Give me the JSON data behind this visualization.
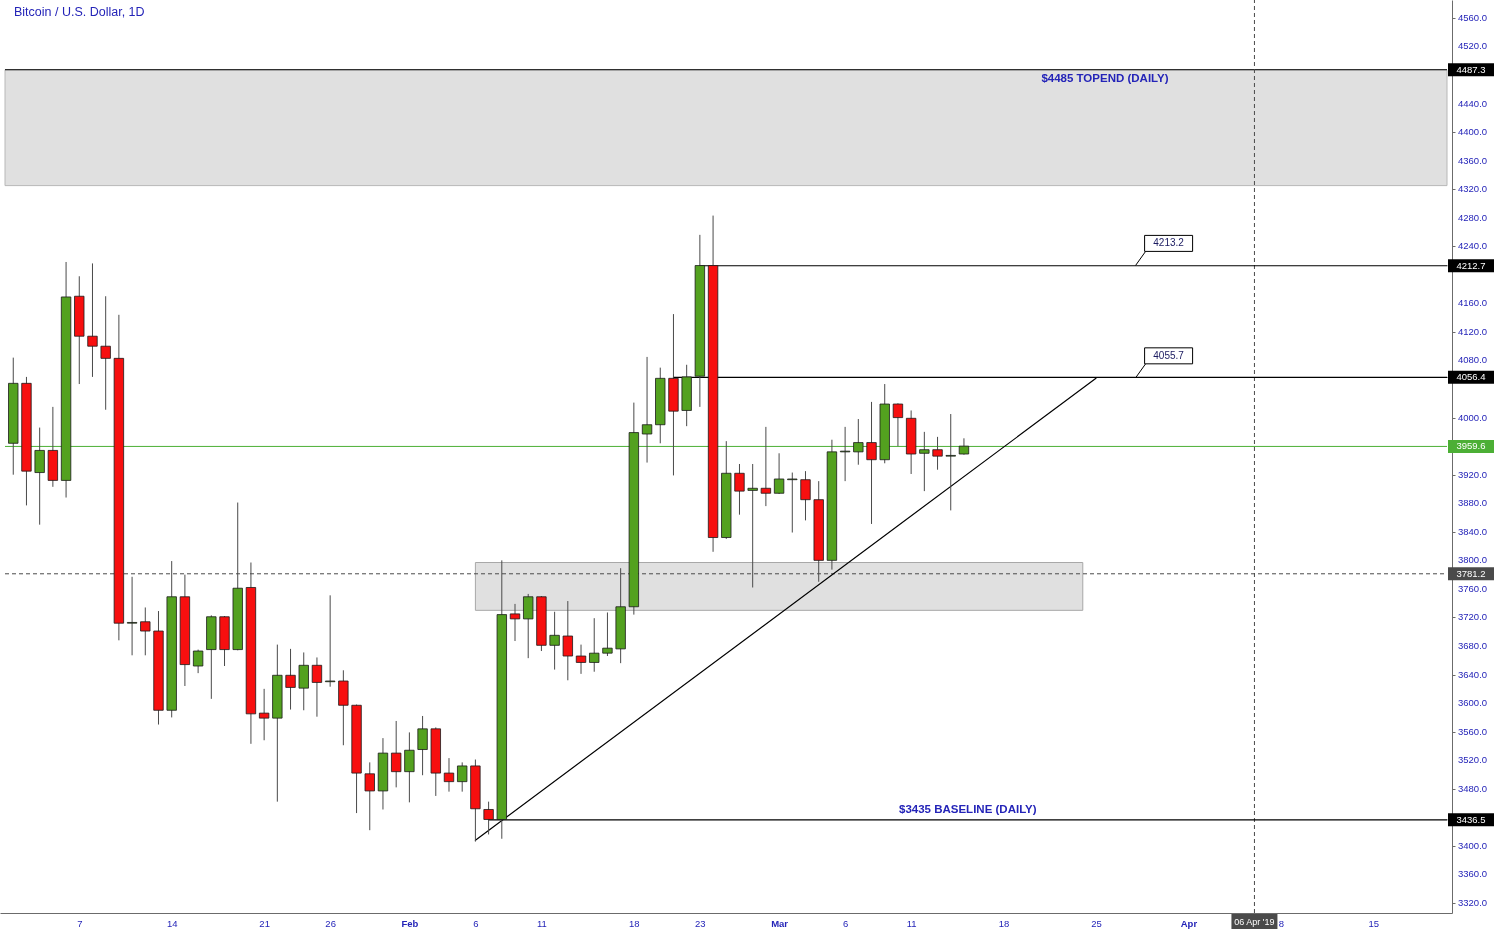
{
  "chart_data": {
    "type": "candlestick",
    "title": "Bitcoin / U.S. Dollar, 1D",
    "xlim": [
      "2019-01-01T09:00",
      "2019-04-20T14:00"
    ],
    "xticks": [
      {
        "value": "2019-01-07",
        "label": "7"
      },
      {
        "value": "2019-01-14",
        "label": "14"
      },
      {
        "value": "2019-01-21",
        "label": "21"
      },
      {
        "value": "2019-01-26",
        "label": "26"
      },
      {
        "value": "2019-02-01",
        "label": "Feb"
      },
      {
        "value": "2019-02-06",
        "label": "6"
      },
      {
        "value": "2019-02-11",
        "label": "11"
      },
      {
        "value": "2019-02-18",
        "label": "18"
      },
      {
        "value": "2019-02-23",
        "label": "23"
      },
      {
        "value": "2019-03-01",
        "label": "Mar"
      },
      {
        "value": "2019-03-06",
        "label": "6"
      },
      {
        "value": "2019-03-11",
        "label": "11"
      },
      {
        "value": "2019-03-18",
        "label": "18"
      },
      {
        "value": "2019-03-25",
        "label": "25"
      },
      {
        "value": "2019-04-01",
        "label": "Apr"
      },
      {
        "value": "2019-04-08",
        "label": "8"
      },
      {
        "value": "2019-04-15",
        "label": "15"
      }
    ],
    "ylim": [
      3306,
      4585
    ],
    "yticks": [
      {
        "value": 3320,
        "label": "3320.0"
      },
      {
        "value": 3360,
        "label": "3360.0"
      },
      {
        "value": 3400,
        "label": "3400.0"
      },
      {
        "value": 3440,
        "label": null
      },
      {
        "value": 3480,
        "label": "3480.0"
      },
      {
        "value": 3520,
        "label": "3520.0"
      },
      {
        "value": 3560,
        "label": "3560.0"
      },
      {
        "value": 3600,
        "label": "3600.0"
      },
      {
        "value": 3640,
        "label": "3640.0"
      },
      {
        "value": 3680,
        "label": "3680.0"
      },
      {
        "value": 3720,
        "label": "3720.0"
      },
      {
        "value": 3760,
        "label": "3760.0"
      },
      {
        "value": 3780,
        "label": null
      },
      {
        "value": 3800,
        "label": "3800.0"
      },
      {
        "value": 3840,
        "label": "3840.0"
      },
      {
        "value": 3880,
        "label": "3880.0"
      },
      {
        "value": 3920,
        "label": "3920.0"
      },
      {
        "value": 3960,
        "label": null
      },
      {
        "value": 4000,
        "label": "4000.0"
      },
      {
        "value": 4080,
        "label": "4080.0"
      },
      {
        "value": 4120,
        "label": "4120.0"
      },
      {
        "value": 4160,
        "label": "4160.0"
      },
      {
        "value": 4240,
        "label": "4240.0"
      },
      {
        "value": 4280,
        "label": "4280.0"
      },
      {
        "value": 4320,
        "label": "4320.0"
      },
      {
        "value": 4360,
        "label": "4360.0"
      },
      {
        "value": 4400,
        "label": "4400.0"
      },
      {
        "value": 4440,
        "label": "4440.0"
      },
      {
        "value": 4480,
        "label": null
      },
      {
        "value": 4520,
        "label": "4520.0"
      },
      {
        "value": 4560,
        "label": "4560.0"
      }
    ],
    "series": [
      {
        "x": [
          "2019-01-02",
          "2019-01-03",
          "2019-01-04",
          "2019-01-05",
          "2019-01-06",
          "2019-01-07",
          "2019-01-08",
          "2019-01-09",
          "2019-01-10",
          "2019-01-11",
          "2019-01-12",
          "2019-01-13",
          "2019-01-14",
          "2019-01-15",
          "2019-01-16",
          "2019-01-17",
          "2019-01-18",
          "2019-01-19",
          "2019-01-20",
          "2019-01-21",
          "2019-01-22",
          "2019-01-23",
          "2019-01-24",
          "2019-01-25",
          "2019-01-26",
          "2019-01-27",
          "2019-01-28",
          "2019-01-29",
          "2019-01-30",
          "2019-01-31",
          "2019-02-01",
          "2019-02-02",
          "2019-02-03",
          "2019-02-04",
          "2019-02-05",
          "2019-02-06",
          "2019-02-07",
          "2019-02-08",
          "2019-02-09",
          "2019-02-10",
          "2019-02-11",
          "2019-02-12",
          "2019-02-13",
          "2019-02-14",
          "2019-02-15",
          "2019-02-16",
          "2019-02-17",
          "2019-02-18",
          "2019-02-19",
          "2019-02-20",
          "2019-02-21",
          "2019-02-22",
          "2019-02-23",
          "2019-02-24",
          "2019-02-25",
          "2019-02-26",
          "2019-02-27",
          "2019-02-28",
          "2019-03-01",
          "2019-03-02",
          "2019-03-03",
          "2019-03-04",
          "2019-03-05",
          "2019-03-06",
          "2019-03-07",
          "2019-03-08",
          "2019-03-09",
          "2019-03-10",
          "2019-03-11",
          "2019-03-12",
          "2019-03-13",
          "2019-03-14",
          "2019-03-15"
        ],
        "ohlc": [
          [
            3964,
            4084,
            3920,
            4048
          ],
          [
            4048,
            4057,
            3877,
            3925
          ],
          [
            3923,
            3986,
            3850,
            3954
          ],
          [
            3954,
            4015,
            3903,
            3912
          ],
          [
            3912,
            4218,
            3888,
            4169
          ],
          [
            4170,
            4198,
            4047,
            4114
          ],
          [
            4114,
            4216,
            4057,
            4100
          ],
          [
            4100,
            4170,
            4011,
            4083
          ],
          [
            4083,
            4144,
            3688,
            3712
          ],
          [
            3712,
            3777,
            3667,
            3713
          ],
          [
            3714,
            3734,
            3667,
            3701
          ],
          [
            3701,
            3729,
            3570,
            3590
          ],
          [
            3590,
            3799,
            3580,
            3749
          ],
          [
            3749,
            3780,
            3624,
            3654
          ],
          [
            3652,
            3675,
            3642,
            3673
          ],
          [
            3675,
            3723,
            3606,
            3721
          ],
          [
            3721,
            3722,
            3652,
            3675
          ],
          [
            3675,
            3881,
            3674,
            3761
          ],
          [
            3762,
            3797,
            3543,
            3585
          ],
          [
            3586,
            3620,
            3548,
            3579
          ],
          [
            3579,
            3682,
            3462,
            3639
          ],
          [
            3639,
            3676,
            3591,
            3622
          ],
          [
            3621,
            3671,
            3590,
            3653
          ],
          [
            3653,
            3664,
            3581,
            3629
          ],
          [
            3630,
            3751,
            3623,
            3631
          ],
          [
            3631,
            3646,
            3541,
            3597
          ],
          [
            3597,
            3598,
            3446,
            3502
          ],
          [
            3501,
            3517,
            3422,
            3477
          ],
          [
            3477,
            3551,
            3451,
            3530
          ],
          [
            3530,
            3575,
            3482,
            3504
          ],
          [
            3504,
            3559,
            3461,
            3534
          ],
          [
            3535,
            3582,
            3499,
            3564
          ],
          [
            3564,
            3566,
            3470,
            3502
          ],
          [
            3502,
            3523,
            3476,
            3490
          ],
          [
            3490,
            3517,
            3476,
            3512
          ],
          [
            3512,
            3521,
            3406,
            3452
          ],
          [
            3451,
            3462,
            3416,
            3437
          ],
          [
            3437,
            3800,
            3410,
            3724
          ],
          [
            3725,
            3739,
            3687,
            3718
          ],
          [
            3718,
            3753,
            3663,
            3749
          ],
          [
            3749,
            3750,
            3673,
            3681
          ],
          [
            3681,
            3728,
            3647,
            3695
          ],
          [
            3694,
            3743,
            3632,
            3666
          ],
          [
            3666,
            3682,
            3641,
            3657
          ],
          [
            3657,
            3719,
            3644,
            3670
          ],
          [
            3670,
            3727,
            3666,
            3677
          ],
          [
            3676,
            3789,
            3656,
            3735
          ],
          [
            3735,
            4021,
            3724,
            3979
          ],
          [
            3977,
            4085,
            3937,
            3990
          ],
          [
            3990,
            4070,
            3964,
            4055
          ],
          [
            4055,
            4145,
            3919,
            4009
          ],
          [
            4010,
            4074,
            3988,
            4057
          ],
          [
            4058,
            4256,
            4015,
            4213
          ],
          [
            4213,
            4283,
            3812,
            3832
          ],
          [
            3832,
            3967,
            3830,
            3922
          ],
          [
            3922,
            3935,
            3864,
            3897
          ],
          [
            3898,
            3935,
            3762,
            3901
          ],
          [
            3901,
            3987,
            3876,
            3894
          ],
          [
            3894,
            3950,
            3893,
            3914
          ],
          [
            3913,
            3923,
            3839,
            3914
          ],
          [
            3913,
            3925,
            3856,
            3885
          ],
          [
            3885,
            3911,
            3770,
            3800
          ],
          [
            3800,
            3969,
            3787,
            3952
          ],
          [
            3952,
            3987,
            3911,
            3953
          ],
          [
            3952,
            3998,
            3934,
            3965
          ],
          [
            3965,
            4022,
            3851,
            3941
          ],
          [
            3941,
            4047,
            3936,
            4019
          ],
          [
            4019,
            4020,
            3960,
            4000
          ],
          [
            3999,
            4010,
            3921,
            3949
          ],
          [
            3950,
            3980,
            3897,
            3955
          ],
          [
            3955,
            3973,
            3927,
            3946
          ],
          [
            3946,
            4005,
            3870,
            3947
          ],
          [
            3949,
            3971,
            3948,
            3960
          ]
        ],
        "colors": [
          "#53a11f",
          "#f70f0f",
          "#53a11f",
          "#f70f0f",
          "#53a11f",
          "#f70f0f",
          "#f70f0f",
          "#f70f0f",
          "#f70f0f",
          "#53a11f",
          "#f70f0f",
          "#f70f0f",
          "#53a11f",
          "#f70f0f",
          "#53a11f",
          "#53a11f",
          "#f70f0f",
          "#53a11f",
          "#f70f0f",
          "#f70f0f",
          "#53a11f",
          "#f70f0f",
          "#53a11f",
          "#f70f0f",
          "#53a11f",
          "#f70f0f",
          "#f70f0f",
          "#f70f0f",
          "#53a11f",
          "#f70f0f",
          "#53a11f",
          "#53a11f",
          "#f70f0f",
          "#f70f0f",
          "#53a11f",
          "#f70f0f",
          "#f70f0f",
          "#53a11f",
          "#f70f0f",
          "#53a11f",
          "#f70f0f",
          "#53a11f",
          "#f70f0f",
          "#f70f0f",
          "#53a11f",
          "#53a11f",
          "#53a11f",
          "#53a11f",
          "#53a11f",
          "#53a11f",
          "#f70f0f",
          "#53a11f",
          "#53a11f",
          "#f70f0f",
          "#53a11f",
          "#f70f0f",
          "#53a11f",
          "#f70f0f",
          "#53a11f",
          "#53a11f",
          "#f70f0f",
          "#f70f0f",
          "#53a11f",
          "#53a11f",
          "#53a11f",
          "#f70f0f",
          "#53a11f",
          "#f70f0f",
          "#f70f0f",
          "#53a11f",
          "#f70f0f",
          "#53a11f",
          "#53a11f"
        ]
      },
      {
        "type": "area",
        "x": [
          "2019-02-06",
          "2019-03-24"
        ],
        "values": [
          null,
          null
        ],
        "lower": [
          3730,
          3730
        ],
        "upper": [
          3797,
          3797
        ],
        "color": "#e0e0e0"
      },
      {
        "type": "line",
        "x": [
          "2019-02-06",
          "2019-03-25"
        ],
        "values": [
          3408,
          4055
        ],
        "color": "#000000"
      },
      {
        "type": "line",
        "x": [
          "2019-02-23",
          "2019-04-20T14:00"
        ],
        "values": [
          4212.7,
          4212.7
        ],
        "value_labels": [
          null,
          "4212.7"
        ],
        "color": "#000000"
      },
      {
        "type": "line",
        "x": [
          "2019-02-21",
          "2019-04-20T14:00"
        ],
        "values": [
          4056.4,
          4056.4
        ],
        "value_labels": [
          null,
          "4056.4"
        ],
        "color": "#000000"
      },
      {
        "type": "line",
        "name": "$3435 BASELINE (DAILY)",
        "x": [
          "2019-02-07",
          "2019-04-20T14:00"
        ],
        "values": [
          3436.5,
          3436.5
        ],
        "value_labels": [
          null,
          "3436.5"
        ],
        "color": "#000000"
      }
    ],
    "bands": [
      {
        "axis": "y",
        "from": 4325,
        "to": 4487.3,
        "label": "$4485 TOPEND (DAILY)",
        "color": "#e0e0e0"
      }
    ],
    "ref_lines": [
      {
        "axis": "y",
        "value": 4487.3,
        "label": "4487.3",
        "color": "#000000"
      },
      {
        "axis": "y",
        "value": 3959.6,
        "label": "3959.6",
        "color": "#4caf35"
      },
      {
        "axis": "y",
        "value": 3781.2,
        "label": "3781.2",
        "color": "#4a4a4a",
        "line_style": "dashed"
      },
      {
        "axis": "x",
        "value": "2019-04-06",
        "label": "06 Apr '19",
        "color": "#4a4a4a",
        "line_style": "dashed"
      }
    ],
    "annotations": [
      {
        "text": "4213.2",
        "x": "2019-03-28",
        "y": 4213.2
      },
      {
        "text": "4055.7",
        "x": "2019-03-28",
        "y": 4055.7
      }
    ]
  }
}
